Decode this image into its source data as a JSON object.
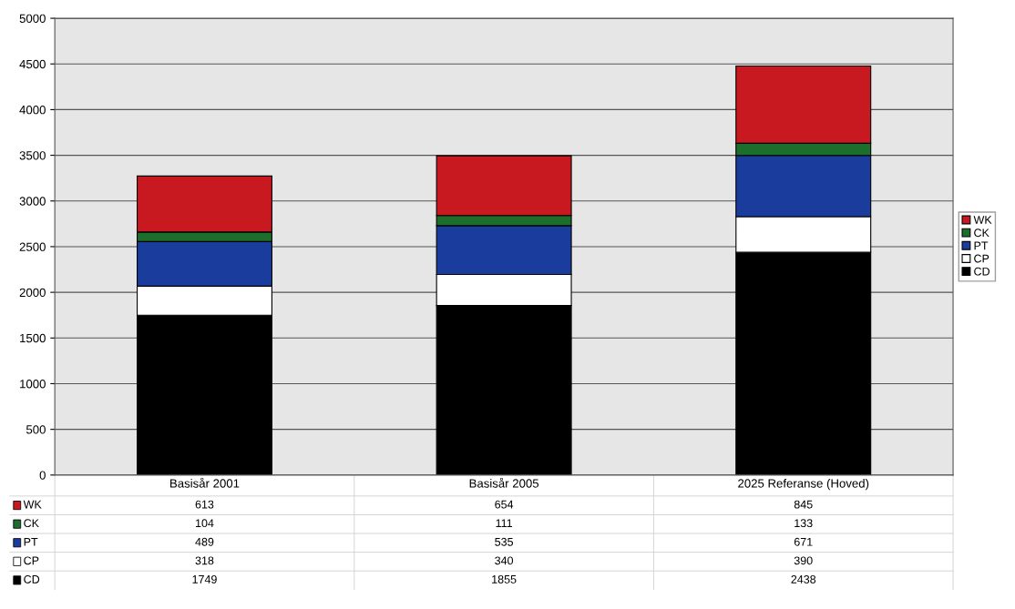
{
  "chart_data": {
    "type": "bar",
    "stacked": true,
    "categories": [
      "Basisår 2001",
      "Basisår 2005",
      "2025 Referanse (Hoved)"
    ],
    "series": [
      {
        "name": "CD",
        "color": "#000000",
        "values": [
          1749,
          1855,
          2438
        ]
      },
      {
        "name": "CP",
        "color": "#ffffff",
        "values": [
          318,
          340,
          390
        ]
      },
      {
        "name": "PT",
        "color": "#1a3c9c",
        "values": [
          489,
          535,
          671
        ]
      },
      {
        "name": "CK",
        "color": "#1b6e2c",
        "values": [
          104,
          111,
          133
        ]
      },
      {
        "name": "WK",
        "color": "#c81820",
        "values": [
          613,
          654,
          845
        ]
      }
    ],
    "ylim": [
      0,
      5000
    ],
    "yticks": [
      0,
      500,
      1000,
      1500,
      2000,
      2500,
      3000,
      3500,
      4000,
      4500,
      5000
    ],
    "grid": "y",
    "legend": "right",
    "data_labels": true
  }
}
